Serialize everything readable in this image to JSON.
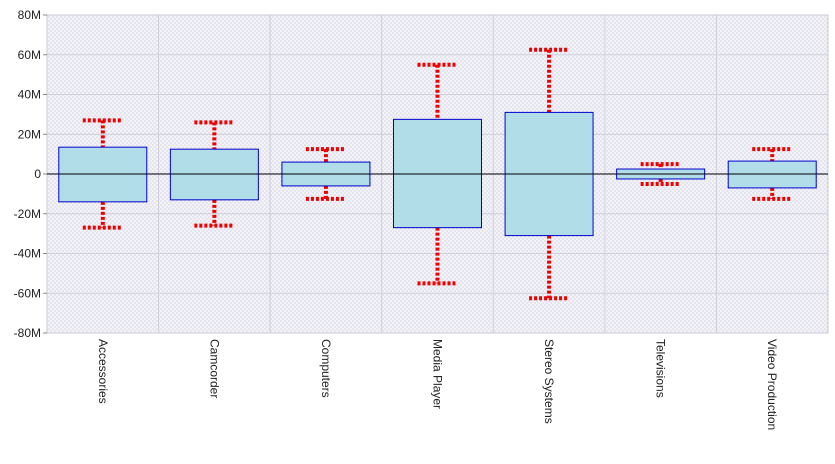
{
  "chart_data": {
    "type": "boxplot",
    "categories": [
      "Accessories",
      "Camcorder",
      "Computers",
      "Media Player",
      "Stereo Systems",
      "Televisions",
      "Video Production"
    ],
    "box_low": [
      -14,
      -13,
      -6,
      -27,
      -31,
      -2.5,
      -7
    ],
    "box_high": [
      13.5,
      12.5,
      6,
      27.5,
      31,
      2.5,
      6.5
    ],
    "whisker_low": [
      -27,
      -26,
      -12.5,
      -55,
      -62.5,
      -5,
      -12.5
    ],
    "whisker_high": [
      27,
      26,
      12.5,
      55,
      62.5,
      5,
      12.5
    ],
    "unit": "M",
    "y_ticks": [
      "80M",
      "60M",
      "40M",
      "20M",
      "0",
      "-20M",
      "-40M",
      "-60M",
      "-80M"
    ],
    "ylim": [
      -80,
      80
    ],
    "grid": true,
    "colors": {
      "box_fill": "#b0dde8",
      "box_stroke": "#0000cc",
      "whisker": "#ee0000",
      "plot_bg": "#eeeef6",
      "grid": "#d0d0dc",
      "zero_line": "#000000"
    }
  }
}
